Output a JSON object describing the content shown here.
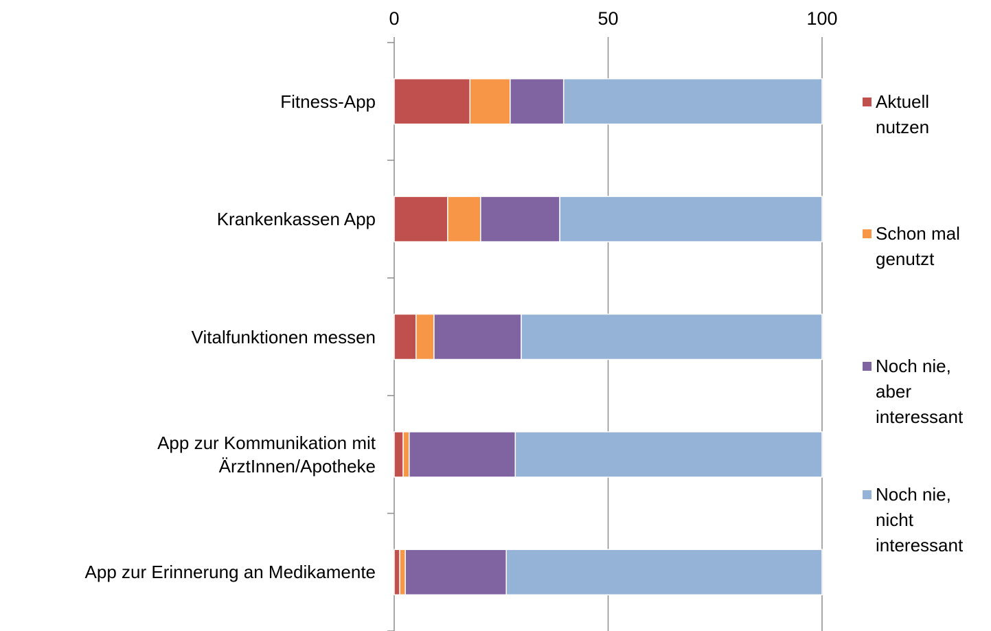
{
  "chart_data": {
    "type": "stacked_barh",
    "categories": [
      "Fitness-App",
      "Krankenkassen App",
      "Vitalfunktionen messen",
      "App zur Kommunikation mit ÄrztInnen/Apotheke",
      "App zur Erinnerung an Medikamente"
    ],
    "series": [
      {
        "name": "Aktuell nutzen",
        "color": "#c0504d",
        "values": [
          17.7,
          12.5,
          5.1,
          2.1,
          1.3
        ]
      },
      {
        "name": "Schon mal genutzt",
        "color": "#f79646",
        "values": [
          9.4,
          7.7,
          4.2,
          1.4,
          1.3
        ]
      },
      {
        "name": "Noch nie, aber interessant",
        "color": "#8064a2",
        "values": [
          12.5,
          18.5,
          20.4,
          24.8,
          23.6
        ]
      },
      {
        "name": "Noch nie, nicht interessant",
        "color": "#95b3d7",
        "values": [
          60.4,
          61.3,
          70.3,
          71.7,
          73.8
        ]
      }
    ],
    "xlim": [
      0,
      100
    ],
    "xticks": [
      0,
      50,
      100
    ],
    "grid": true,
    "legend": "right"
  }
}
